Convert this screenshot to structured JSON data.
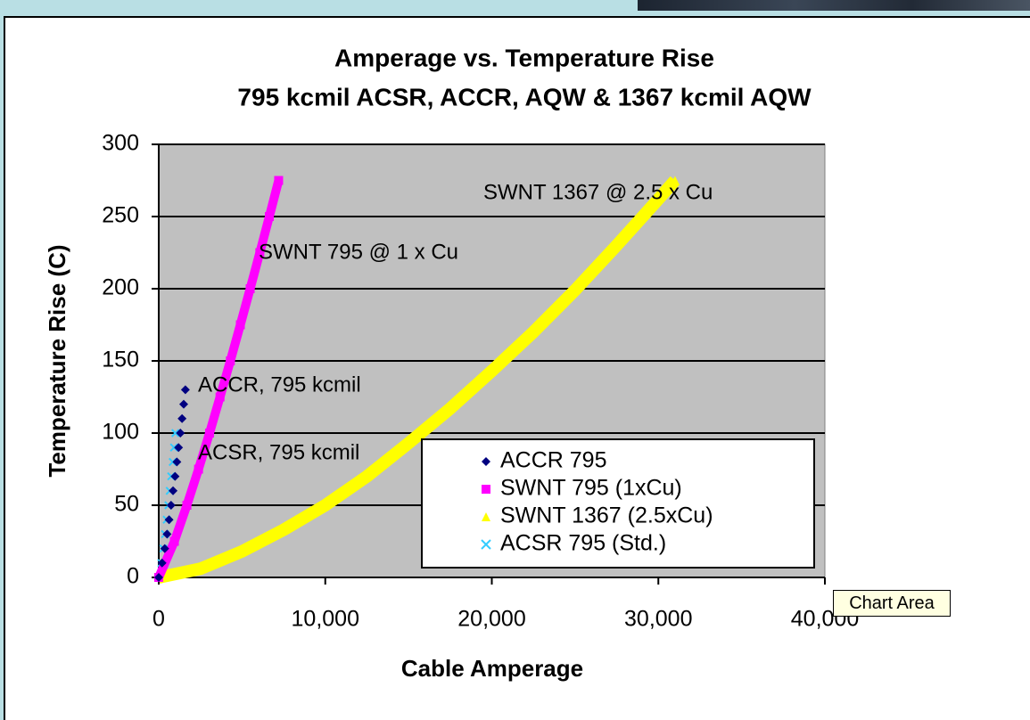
{
  "chart_data": {
    "type": "scatter",
    "title": "Amperage vs. Temperature Rise",
    "subtitle": "795 kcmil ACSR, ACCR, AQW & 1367 kcmil AQW",
    "xlabel": "Cable Amperage",
    "ylabel": "Temperature Rise (C)",
    "xlim": [
      0,
      40000
    ],
    "xticks": [
      0,
      {
        "value": 10000,
        "label": "10,000"
      },
      {
        "value": 20000,
        "label": "20,000"
      },
      {
        "value": 30000,
        "label": "30,000"
      },
      {
        "value": 40000,
        "label": "40,000"
      }
    ],
    "ylim": [
      0,
      300
    ],
    "yticks": [
      0,
      50,
      100,
      150,
      200,
      250,
      300
    ],
    "grid": true,
    "legend": "lower right",
    "series": [
      {
        "name": "ACCR 795",
        "color": "#000080",
        "marker": "diamond",
        "x": [
          0,
          200,
          360,
          500,
          620,
          740,
          860,
          980,
          1090,
          1190,
          1300,
          1400,
          1500,
          1600
        ],
        "values": [
          0,
          10,
          20,
          30,
          40,
          50,
          60,
          70,
          80,
          90,
          100,
          110,
          120,
          130
        ]
      },
      {
        "name": "SWNT 795 (1xCu)",
        "color": "#ff00ff",
        "marker": "square",
        "x": [
          0,
          940,
          1690,
          2390,
          3050,
          3680,
          4300,
          4900,
          5490,
          6070,
          6640,
          7200
        ],
        "values": [
          0,
          25,
          50,
          75,
          100,
          125,
          150,
          175,
          200,
          225,
          250,
          275
        ]
      },
      {
        "name": "SWNT 1367 (2.5xCu)",
        "color": "#ffff00",
        "marker": "triangle",
        "x": [
          0,
          2500,
          5000,
          7500,
          10000,
          12500,
          15000,
          17500,
          20000,
          22500,
          25000,
          27500,
          30000,
          31000
        ],
        "values": [
          0,
          6,
          18,
          33,
          50,
          70,
          93,
          117,
          143,
          170,
          199,
          230,
          262,
          275
        ]
      },
      {
        "name": "ACSR 795 (Std.)",
        "color": "#33ccff",
        "marker": "x",
        "x": [
          0,
          160,
          280,
          380,
          480,
          580,
          660,
          750,
          840,
          920,
          1000
        ],
        "values": [
          0,
          10,
          20,
          30,
          40,
          50,
          60,
          70,
          80,
          90,
          100
        ]
      }
    ],
    "annotations": [
      "SWNT 1367 @  2.5 x Cu",
      "SWNT 795 @  1 x Cu",
      "ACCR, 795 kcmil",
      "ACSR, 795 kcmil"
    ]
  },
  "tooltip": "Chart Area"
}
